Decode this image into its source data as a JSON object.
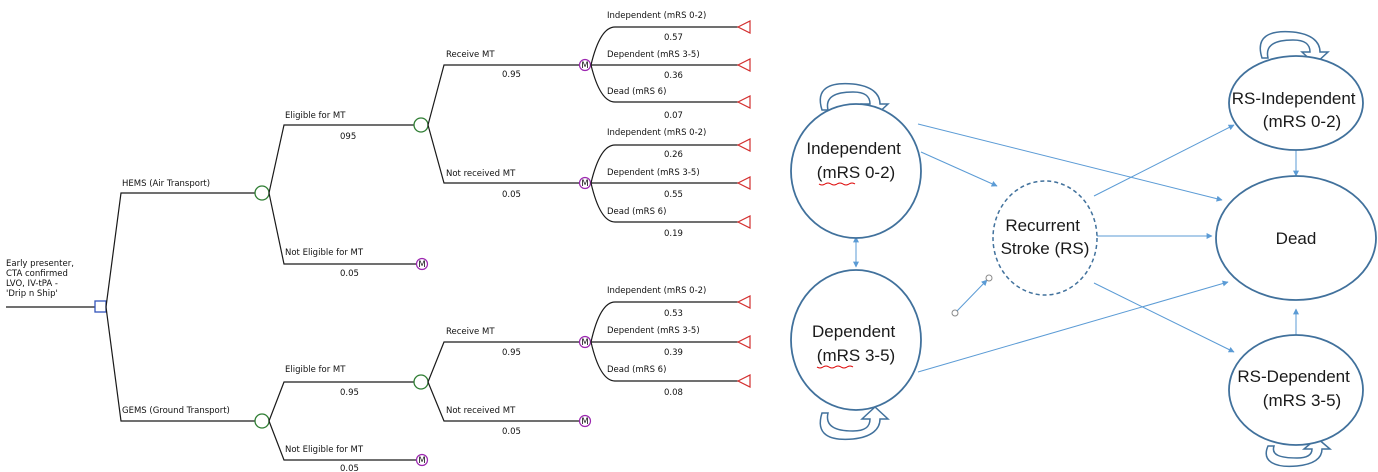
{
  "decision_tree": {
    "root_label_lines": [
      "Early presenter,",
      "CTA confirmed",
      "LVO, IV-tPA  -",
      "'Drip n Ship'"
    ],
    "hems": {
      "label": "HEMS (Air Transport)",
      "eligible": {
        "label": "Eligible for MT",
        "prob": "095",
        "receive": {
          "label": "Receive MT",
          "prob": "0.95",
          "outcomes": [
            {
              "label": "Independent (mRS 0-2)",
              "prob": "0.57"
            },
            {
              "label": "Dependent (mRS 3-5)",
              "prob": "0.36"
            },
            {
              "label": "Dead (mRS 6)",
              "prob": "0.07"
            }
          ]
        },
        "not_received": {
          "label": "Not  received MT",
          "prob": "0.05",
          "outcomes": [
            {
              "label": "Independent (mRS 0-2)",
              "prob": "0.26"
            },
            {
              "label": "Dependent (mRS 3-5)",
              "prob": "0.55"
            },
            {
              "label": "Dead (mRS 6)",
              "prob": "0.19"
            }
          ]
        }
      },
      "not_eligible": {
        "label": "Not Eligible for MT",
        "prob": "0.05"
      }
    },
    "gems": {
      "label": "GEMS (Ground Transport)",
      "eligible": {
        "label": "Eligible for MT",
        "prob": "0.95",
        "receive": {
          "label": "Receive MT",
          "prob": "0.95",
          "outcomes": [
            {
              "label": "Independent (mRS 0-2)",
              "prob": "0.53"
            },
            {
              "label": "Dependent (mRS 3-5)",
              "prob": "0.39"
            },
            {
              "label": "Dead (mRS 6)",
              "prob": "0.08"
            }
          ]
        },
        "not_received": {
          "label": "Not received MT",
          "prob": "0.05"
        }
      },
      "not_eligible": {
        "label": "Not Eligible for MT",
        "prob": "0.05"
      }
    },
    "markov_node_glyph": "M"
  },
  "markov_model": {
    "independent": [
      "Independent",
      "(mRS 0-2)"
    ],
    "dependent": [
      "Dependent",
      "(mRS 3-5)"
    ],
    "recurrent": [
      "Recurrent",
      "Stroke (RS)"
    ],
    "dead": "Dead",
    "rs_independent": [
      "RS-Independent",
      "(mRS 0-2)"
    ],
    "rs_dependent": [
      "RS-Dependent",
      "(mRS 3-5)"
    ]
  },
  "colors": {
    "decision_node": "#3355bb",
    "chance_node": "#2e7d32",
    "markov_node": "#9c27b0",
    "terminal_node": "#d32f2f",
    "state_border": "#41719c",
    "arrow": "#5b9bd5"
  }
}
